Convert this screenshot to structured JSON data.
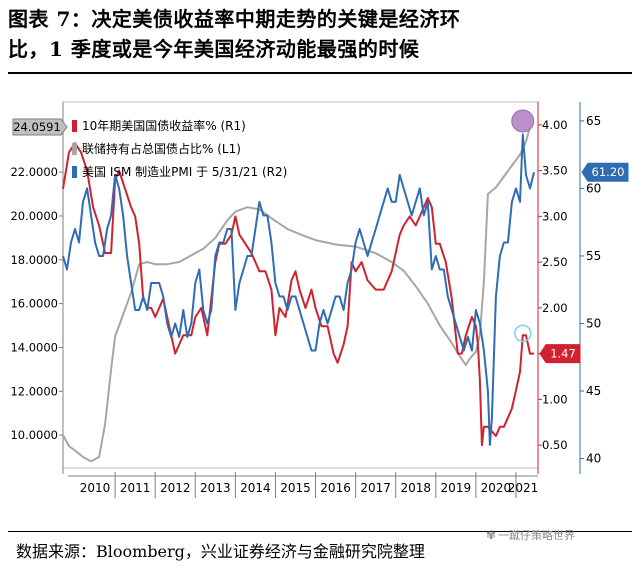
{
  "title_line1": "图表 7：决定美债收益率中期走势的关键是经济环",
  "title_line2": "比，1 季度或是今年美国经济动能最强的时候",
  "source": "数据来源：Bloomberg，兴业证券经济与金融研究院整理",
  "watermark": "一蹴仔策略世界",
  "chart_data": {
    "type": "line",
    "x_ticks": [
      "2010",
      "2011",
      "2012",
      "2013",
      "2014",
      "2015",
      "2016",
      "2017",
      "2018",
      "2019",
      "2020",
      "2021"
    ],
    "axes": {
      "L1": {
        "ticks": [
          "10.0000",
          "12.0000",
          "14.0000",
          "16.0000",
          "18.0000",
          "20.0000",
          "22.0000"
        ],
        "range": [
          8.5,
          25.2
        ]
      },
      "R1": {
        "ticks": [
          "0.50",
          "1.00",
          "1.50",
          "2.00",
          "2.50",
          "3.00",
          "3.50",
          "4.00"
        ],
        "range": [
          0.25,
          4.25
        ]
      },
      "R2": {
        "ticks": [
          "40",
          "45",
          "50",
          "55",
          "60",
          "65"
        ],
        "range": [
          39.3,
          66.4
        ]
      }
    },
    "series": [
      {
        "name": "10年期美国国债收益率% (R1)",
        "color": "#d0222e",
        "axis": "R1",
        "last_label": "1.47",
        "x": [
          2009.7,
          2009.85,
          2010.0,
          2010.15,
          2010.3,
          2010.45,
          2010.6,
          2010.75,
          2010.9,
          2011.0,
          2011.1,
          2011.25,
          2011.4,
          2011.5,
          2011.6,
          2011.7,
          2011.8,
          2011.9,
          2012.0,
          2012.1,
          2012.2,
          2012.35,
          2012.5,
          2012.6,
          2012.7,
          2012.8,
          2012.9,
          2013.0,
          2013.15,
          2013.3,
          2013.4,
          2013.5,
          2013.6,
          2013.75,
          2013.9,
          2014.0,
          2014.1,
          2014.25,
          2014.4,
          2014.5,
          2014.6,
          2014.75,
          2014.9,
          2015.0,
          2015.1,
          2015.25,
          2015.4,
          2015.5,
          2015.6,
          2015.75,
          2015.9,
          2016.0,
          2016.15,
          2016.3,
          2016.45,
          2016.55,
          2016.7,
          2016.8,
          2016.9,
          2017.0,
          2017.15,
          2017.3,
          2017.5,
          2017.7,
          2017.9,
          2018.0,
          2018.1,
          2018.2,
          2018.35,
          2018.5,
          2018.6,
          2018.8,
          2018.9,
          2019.0,
          2019.1,
          2019.25,
          2019.4,
          2019.55,
          2019.65,
          2019.75,
          2019.9,
          2020.0,
          2020.05,
          2020.1,
          2020.15,
          2020.2,
          2020.3,
          2020.5,
          2020.6,
          2020.7,
          2020.8,
          2020.9,
          2021.0,
          2021.1,
          2021.17,
          2021.25,
          2021.35,
          2021.45
        ],
        "y": [
          3.3,
          3.7,
          3.8,
          3.7,
          3.5,
          3.1,
          2.9,
          2.6,
          2.6,
          3.4,
          3.5,
          3.3,
          3.1,
          3.0,
          2.7,
          2.1,
          2.0,
          2.0,
          1.9,
          2.0,
          2.1,
          1.8,
          1.5,
          1.6,
          1.7,
          1.7,
          1.7,
          1.9,
          2.0,
          1.7,
          2.1,
          2.5,
          2.7,
          2.7,
          2.8,
          3.0,
          2.8,
          2.7,
          2.6,
          2.5,
          2.4,
          2.4,
          2.2,
          1.7,
          2.0,
          1.9,
          2.3,
          2.4,
          2.2,
          2.0,
          2.2,
          2.0,
          1.8,
          1.8,
          1.5,
          1.4,
          1.6,
          1.8,
          2.5,
          2.4,
          2.5,
          2.3,
          2.2,
          2.2,
          2.4,
          2.6,
          2.8,
          2.9,
          3.0,
          2.9,
          3.0,
          3.2,
          3.1,
          2.7,
          2.7,
          2.5,
          2.1,
          1.5,
          1.5,
          1.7,
          1.9,
          1.8,
          1.6,
          1.2,
          0.5,
          0.7,
          0.7,
          0.6,
          0.7,
          0.7,
          0.8,
          0.9,
          1.1,
          1.3,
          1.7,
          1.7,
          1.5,
          1.5
        ]
      },
      {
        "name": "联储持有占总国债占比% (L1)",
        "color": "#a6a6a6",
        "axis": "L1",
        "last_label": "24.0591",
        "x": [
          2009.7,
          2009.85,
          2010.0,
          2010.2,
          2010.4,
          2010.6,
          2010.75,
          2010.9,
          2011.0,
          2011.2,
          2011.4,
          2011.6,
          2011.8,
          2012.0,
          2012.3,
          2012.6,
          2012.9,
          2013.2,
          2013.5,
          2013.8,
          2014.0,
          2014.3,
          2014.6,
          2014.9,
          2015.3,
          2015.7,
          2016.0,
          2016.5,
          2017.0,
          2017.5,
          2017.9,
          2018.2,
          2018.5,
          2018.8,
          2019.1,
          2019.4,
          2019.6,
          2019.75,
          2019.85,
          2020.0,
          2020.1,
          2020.2,
          2020.3,
          2020.5,
          2020.7,
          2020.9,
          2021.1,
          2021.25,
          2021.35
        ],
        "y": [
          10.0,
          9.5,
          9.3,
          9.0,
          8.8,
          9.0,
          10.5,
          13.0,
          14.5,
          15.5,
          16.5,
          17.8,
          17.9,
          17.8,
          17.8,
          17.9,
          18.2,
          18.5,
          19.0,
          19.8,
          20.2,
          20.4,
          20.3,
          19.9,
          19.4,
          19.1,
          18.9,
          18.7,
          18.6,
          18.3,
          17.9,
          17.5,
          16.8,
          16.0,
          15.0,
          14.2,
          13.6,
          13.2,
          13.5,
          13.8,
          14.6,
          17.0,
          21.0,
          21.3,
          21.8,
          22.3,
          22.8,
          23.4,
          24.06
        ]
      },
      {
        "name": "美国 ISM 制造业PMI 于 5/31/21 (R2)",
        "color": "#2e6db4",
        "axis": "R2",
        "last_label": "61.20",
        "x": [
          2009.7,
          2009.8,
          2009.9,
          2010.0,
          2010.1,
          2010.2,
          2010.3,
          2010.4,
          2010.5,
          2010.6,
          2010.7,
          2010.8,
          2010.9,
          2011.0,
          2011.1,
          2011.2,
          2011.3,
          2011.4,
          2011.5,
          2011.6,
          2011.7,
          2011.8,
          2011.9,
          2012.0,
          2012.1,
          2012.2,
          2012.3,
          2012.4,
          2012.5,
          2012.6,
          2012.7,
          2012.8,
          2012.9,
          2013.0,
          2013.1,
          2013.2,
          2013.3,
          2013.4,
          2013.5,
          2013.6,
          2013.7,
          2013.8,
          2013.9,
          2014.0,
          2014.1,
          2014.2,
          2014.3,
          2014.4,
          2014.5,
          2014.6,
          2014.7,
          2014.8,
          2014.9,
          2015.0,
          2015.1,
          2015.2,
          2015.3,
          2015.4,
          2015.5,
          2015.6,
          2015.7,
          2015.8,
          2015.9,
          2016.0,
          2016.1,
          2016.2,
          2016.3,
          2016.4,
          2016.5,
          2016.6,
          2016.7,
          2016.8,
          2016.9,
          2017.0,
          2017.1,
          2017.2,
          2017.3,
          2017.4,
          2017.5,
          2017.6,
          2017.7,
          2017.8,
          2017.9,
          2018.0,
          2018.1,
          2018.2,
          2018.3,
          2018.4,
          2018.5,
          2018.6,
          2018.7,
          2018.8,
          2018.9,
          2019.0,
          2019.1,
          2019.2,
          2019.3,
          2019.4,
          2019.5,
          2019.6,
          2019.7,
          2019.8,
          2019.9,
          2020.0,
          2020.1,
          2020.2,
          2020.3,
          2020.35,
          2020.4,
          2020.5,
          2020.6,
          2020.7,
          2020.8,
          2020.9,
          2021.0,
          2021.1,
          2021.17,
          2021.25,
          2021.35,
          2021.45
        ],
        "y": [
          55,
          54,
          56,
          57,
          56,
          59,
          60,
          58,
          56,
          55,
          55,
          57,
          58,
          61,
          60,
          58,
          55,
          53,
          51,
          51,
          52,
          51,
          53,
          53,
          53,
          52,
          50,
          49,
          50,
          49,
          51,
          49,
          50,
          53,
          54,
          51,
          50,
          51,
          55,
          56,
          56,
          57,
          57,
          51,
          53,
          54,
          55,
          55,
          57,
          59,
          58,
          58,
          56,
          53,
          52,
          52,
          51,
          52,
          52,
          51,
          50,
          49,
          48,
          48,
          50,
          51,
          50,
          51,
          52,
          52,
          51,
          53,
          54,
          56,
          57,
          56,
          55,
          56,
          57,
          58,
          59,
          60,
          59,
          59,
          61,
          60,
          59,
          58,
          59,
          60,
          58,
          59,
          54,
          55,
          54,
          54,
          52,
          51,
          50,
          49,
          48,
          49,
          48,
          51,
          50,
          48,
          45,
          41,
          43,
          52,
          55,
          56,
          56,
          59,
          60,
          59,
          64,
          61,
          60,
          61.2
        ]
      }
    ],
    "markers": [
      {
        "series": 1,
        "x": 2021.17,
        "kind": "filled-circle",
        "color": "#b184c4"
      },
      {
        "series": 0,
        "x": 2021.17,
        "kind": "hollow-circle",
        "color": "#7fd0e4"
      }
    ]
  }
}
